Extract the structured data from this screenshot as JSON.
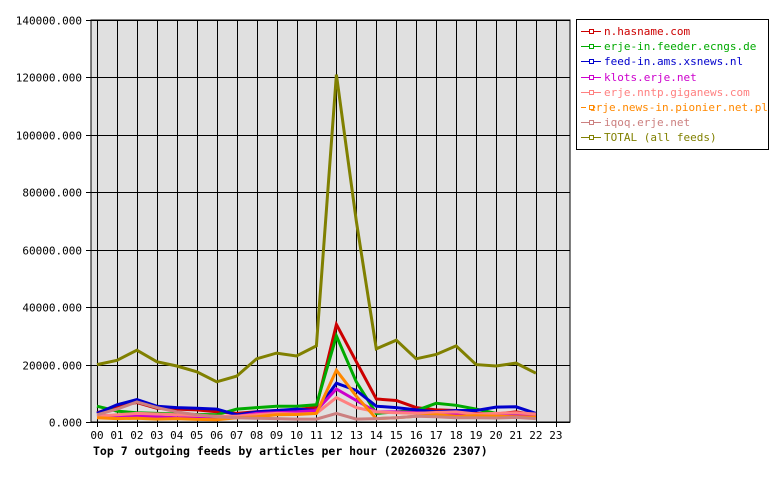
{
  "chart_data": {
    "type": "line",
    "title": "Top 7 outgoing feeds by articles per hour (20260326 2307)",
    "xlabel": "",
    "ylabel": "",
    "x": [
      "00",
      "01",
      "02",
      "03",
      "04",
      "05",
      "06",
      "07",
      "08",
      "09",
      "10",
      "11",
      "12",
      "13",
      "14",
      "15",
      "16",
      "17",
      "18",
      "19",
      "20",
      "21",
      "22",
      "23"
    ],
    "ylim": [
      0,
      140000
    ],
    "yticks": [
      "0.000",
      "20000.000",
      "40000.000",
      "60000.000",
      "80000.000",
      "100000.000",
      "120000.000",
      "140000.000"
    ],
    "grid": true,
    "legend_position": "right",
    "series": [
      {
        "name": "n.hasname.com",
        "color": "#cc0000",
        "values": [
          3200,
          5500,
          6800,
          4800,
          4500,
          4200,
          3600,
          3000,
          3600,
          4000,
          4200,
          5200,
          34000,
          21000,
          8000,
          7500,
          5000,
          4200,
          4000,
          3000,
          2800,
          3500,
          2500,
          null
        ]
      },
      {
        "name": "erje-in.feeder.ecngs.de",
        "color": "#00aa00",
        "values": [
          5500,
          3800,
          3200,
          3000,
          2800,
          2600,
          2500,
          4500,
          5000,
          5500,
          5500,
          6000,
          30000,
          14000,
          3000,
          3500,
          4000,
          6500,
          5800,
          4500,
          3000,
          2800,
          3000,
          null
        ]
      },
      {
        "name": "feed-in.ams.xsnews.nl",
        "color": "#0000cc",
        "values": [
          3000,
          6000,
          7800,
          5500,
          5000,
          4800,
          4500,
          2500,
          3500,
          4000,
          4500,
          4000,
          13500,
          11000,
          5500,
          5000,
          4200,
          3500,
          4000,
          4000,
          5200,
          5300,
          3000,
          null
        ]
      },
      {
        "name": "klots.erje.net",
        "color": "#cc00cc",
        "values": [
          2500,
          1800,
          2200,
          1800,
          1500,
          1600,
          1500,
          2000,
          3000,
          3200,
          3500,
          4000,
          11500,
          7500,
          3500,
          3500,
          3200,
          3000,
          2800,
          2200,
          2000,
          2200,
          2000,
          null
        ]
      },
      {
        "name": "erje.nntp.giganews.com",
        "color": "#ff8080",
        "values": [
          2000,
          2500,
          3000,
          2800,
          2500,
          2300,
          2000,
          2000,
          2500,
          3000,
          2800,
          3000,
          8500,
          5000,
          3500,
          3200,
          3000,
          3300,
          3500,
          2800,
          3000,
          3200,
          2800,
          null
        ]
      },
      {
        "name": "erje.news-in.pionier.net.pl",
        "color": "#ff8800",
        "values": [
          1500,
          1200,
          1300,
          1000,
          1200,
          900,
          800,
          1500,
          1800,
          2500,
          2600,
          3000,
          18000,
          9000,
          1200,
          1500,
          2000,
          2500,
          2000,
          2200,
          2000,
          1800,
          1700,
          null
        ]
      },
      {
        "name": "iqoq.erje.net",
        "color": "#cc8080",
        "values": [
          2500,
          4500,
          7000,
          5000,
          3500,
          2500,
          1800,
          1500,
          1300,
          1200,
          1000,
          1000,
          3000,
          1000,
          1200,
          1500,
          2000,
          1800,
          1500,
          1500,
          1400,
          1600,
          1200,
          null
        ]
      },
      {
        "name": "TOTAL (all feeds)",
        "color": "#808000",
        "values": [
          20000,
          21500,
          25000,
          21000,
          19500,
          17500,
          14000,
          16000,
          22000,
          24000,
          23000,
          26500,
          121000,
          70000,
          25500,
          28500,
          22000,
          23500,
          26500,
          20000,
          19500,
          20500,
          17000,
          null
        ]
      }
    ]
  },
  "legend": {
    "items": [
      {
        "label": "n.hasname.com",
        "color": "#cc0000"
      },
      {
        "label": "erje-in.feeder.ecngs.de",
        "color": "#00aa00"
      },
      {
        "label": "feed-in.ams.xsnews.nl",
        "color": "#0000cc"
      },
      {
        "label": "klots.erje.net",
        "color": "#cc00cc"
      },
      {
        "label": "erje.nntp.giganews.com",
        "color": "#ff8080"
      },
      {
        "label": "erje.news-in.pionier.net.pl",
        "color": "#ff8800"
      },
      {
        "label": "iqoq.erje.net",
        "color": "#cc8080"
      },
      {
        "label": "TOTAL (all feeds)",
        "color": "#808000"
      }
    ]
  },
  "colors": {
    "plot_background": "#e0e0e0",
    "grid": "#000000",
    "axis": "#000000"
  }
}
